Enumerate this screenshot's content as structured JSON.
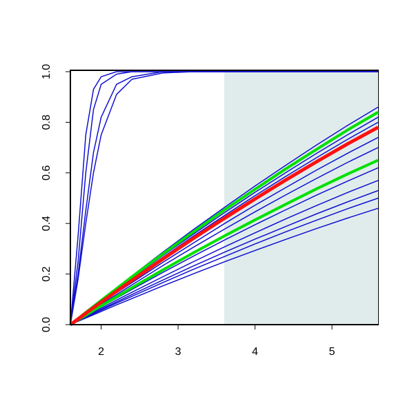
{
  "chart_data": {
    "type": "line",
    "x": [
      1.6,
      1.7,
      1.8,
      1.9,
      2.0,
      2.2,
      2.4,
      2.8,
      3.2,
      3.6,
      4.0,
      4.4,
      4.8,
      5.2,
      5.6
    ],
    "xlim": [
      1.6,
      5.6
    ],
    "ylim": [
      0,
      1
    ],
    "xticks": [
      2,
      3,
      4,
      5
    ],
    "yticks": [
      {
        "value": 0,
        "label": "0.0"
      },
      {
        "value": 0.2,
        "label": "0.2"
      },
      {
        "value": 0.4,
        "label": "0.4"
      },
      {
        "value": 0.6,
        "label": "0.6"
      },
      {
        "value": 0.8,
        "label": "0.8"
      },
      {
        "value": 1,
        "label": "1.0"
      }
    ],
    "highlight_xrange": [
      3.6,
      5.6
    ],
    "highlight_color": "#e0ecec",
    "series": [
      {
        "color": "#1010d0",
        "width": 1.5,
        "values": [
          0,
          0.35,
          0.75,
          0.93,
          0.98,
          1.0,
          1.0,
          1.0,
          1.0,
          1.0,
          1.0,
          1.0,
          1.0,
          1.0,
          1.0
        ]
      },
      {
        "color": "#1010d0",
        "width": 1.5,
        "values": [
          0,
          0.25,
          0.6,
          0.85,
          0.95,
          0.99,
          1.0,
          1.0,
          1.0,
          1.0,
          1.0,
          1.0,
          1.0,
          1.0,
          1.0
        ]
      },
      {
        "color": "#1010d0",
        "width": 1.5,
        "values": [
          0,
          0.2,
          0.45,
          0.68,
          0.82,
          0.95,
          0.98,
          1.0,
          1.0,
          1.0,
          1.0,
          1.0,
          1.0,
          1.0,
          1.0
        ]
      },
      {
        "color": "#1010d0",
        "width": 1.5,
        "values": [
          0,
          0.18,
          0.4,
          0.6,
          0.75,
          0.91,
          0.97,
          0.995,
          1.0,
          1.0,
          1.0,
          1.0,
          1.0,
          1.0,
          1.0
        ]
      },
      {
        "color": "#1010d0",
        "width": 1.5,
        "values": [
          0,
          0.025,
          0.049,
          0.074,
          0.098,
          0.146,
          0.193,
          0.286,
          0.376,
          0.463,
          0.548,
          0.63,
          0.71,
          0.787,
          0.86
        ]
      },
      {
        "color": "#1010d0",
        "width": 1.5,
        "values": [
          0,
          0.024,
          0.047,
          0.07,
          0.093,
          0.139,
          0.184,
          0.273,
          0.358,
          0.442,
          0.523,
          0.601,
          0.677,
          0.75,
          0.82
        ]
      },
      {
        "color": "#1010d0",
        "width": 1.5,
        "values": [
          0,
          0.023,
          0.046,
          0.069,
          0.091,
          0.136,
          0.18,
          0.266,
          0.35,
          0.431,
          0.51,
          0.586,
          0.66,
          0.732,
          0.8
        ]
      },
      {
        "color": "#1010d0",
        "width": 1.5,
        "values": [
          0,
          0.021,
          0.042,
          0.063,
          0.084,
          0.126,
          0.166,
          0.246,
          0.323,
          0.399,
          0.472,
          0.542,
          0.611,
          0.677,
          0.74
        ]
      },
      {
        "color": "#1010d0",
        "width": 1.5,
        "values": [
          0,
          0.02,
          0.04,
          0.06,
          0.08,
          0.119,
          0.157,
          0.233,
          0.306,
          0.377,
          0.446,
          0.513,
          0.578,
          0.641,
          0.7
        ]
      },
      {
        "color": "#1010d0",
        "width": 1.5,
        "values": [
          0,
          0.018,
          0.036,
          0.053,
          0.071,
          0.105,
          0.139,
          0.206,
          0.271,
          0.334,
          0.395,
          0.454,
          0.512,
          0.567,
          0.62
        ]
      },
      {
        "color": "#1010d0",
        "width": 1.5,
        "values": [
          0,
          0.016,
          0.033,
          0.049,
          0.065,
          0.097,
          0.128,
          0.189,
          0.249,
          0.307,
          0.363,
          0.418,
          0.471,
          0.522,
          0.57
        ]
      },
      {
        "color": "#1010d0",
        "width": 1.5,
        "values": [
          0,
          0.015,
          0.03,
          0.045,
          0.06,
          0.09,
          0.119,
          0.176,
          0.232,
          0.286,
          0.338,
          0.388,
          0.438,
          0.485,
          0.53
        ]
      },
      {
        "color": "#1010d0",
        "width": 1.5,
        "values": [
          0,
          0.014,
          0.029,
          0.043,
          0.057,
          0.085,
          0.112,
          0.166,
          0.219,
          0.269,
          0.319,
          0.367,
          0.413,
          0.458,
          0.5
        ]
      },
      {
        "color": "#1010d0",
        "width": 1.5,
        "values": [
          0,
          0.013,
          0.026,
          0.039,
          0.052,
          0.078,
          0.103,
          0.153,
          0.201,
          0.248,
          0.293,
          0.337,
          0.38,
          0.421,
          0.46
        ]
      },
      {
        "color": "#00e000",
        "width": 4,
        "values": [
          0,
          0.024,
          0.048,
          0.072,
          0.096,
          0.142,
          0.189,
          0.279,
          0.367,
          0.453,
          0.535,
          0.616,
          0.693,
          0.769,
          0.84
        ]
      },
      {
        "color": "#00e000",
        "width": 4,
        "values": [
          0,
          0.019,
          0.037,
          0.056,
          0.074,
          0.11,
          0.146,
          0.216,
          0.284,
          0.35,
          0.414,
          0.476,
          0.537,
          0.595,
          0.65
        ]
      },
      {
        "color": "#ff1010",
        "width": 5,
        "values": [
          0,
          0.022,
          0.045,
          0.067,
          0.089,
          0.132,
          0.175,
          0.259,
          0.341,
          0.42,
          0.497,
          0.572,
          0.644,
          0.714,
          0.78
        ]
      }
    ]
  }
}
